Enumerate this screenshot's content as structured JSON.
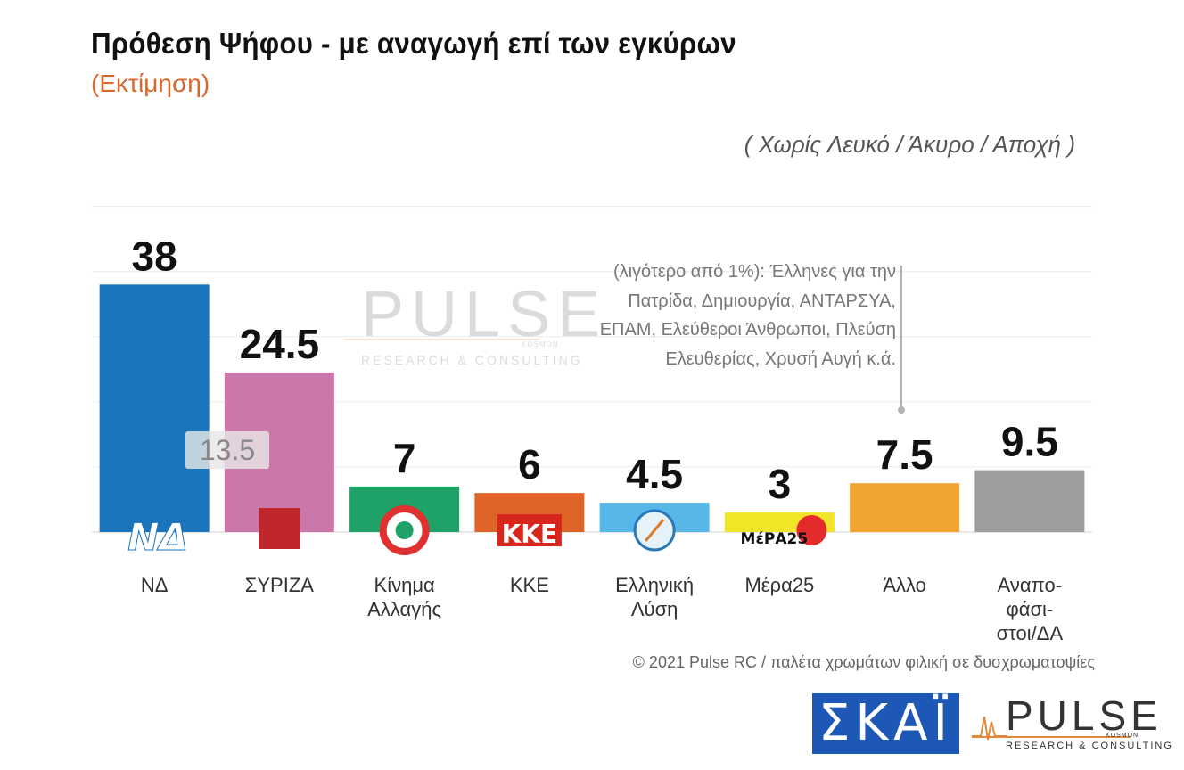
{
  "header": {
    "title": "Πρόθεση Ψήφου - με αναγωγή επί των εγκύρων",
    "subtitle": "(Εκτίμηση)",
    "note": "( Χωρίς Λευκό / Άκυρο / Αποχή )"
  },
  "annotation": {
    "lines": [
      "(λιγότερο από 1%): Έλληνες για την",
      "Πατρίδα, Δημιουργία, ΑΝΤΑΡΣΥΑ,",
      "ΕΠΑΜ, Ελεύθεροι Άνθρωποι, Πλεύση",
      "Ελευθερίας, Χρυσή Αυγή κ.ά."
    ]
  },
  "watermark": {
    "brand": "PULSE",
    "kosmon": "KOSMON",
    "tagline": "RESEARCH & CONSULTING"
  },
  "popup_value": "13.5",
  "chart_data": {
    "type": "bar",
    "categories": [
      "ΝΔ",
      "ΣΥΡΙΖΑ",
      "Κίνημα Αλλαγής",
      "ΚΚΕ",
      "Ελληνική Λύση",
      "Μέρα25",
      "Άλλο",
      "Αναπο-φάσι-στοι/ΔΑ"
    ],
    "category_lines": [
      [
        "ΝΔ"
      ],
      [
        "ΣΥΡΙΖΑ"
      ],
      [
        "Κίνημα",
        "Αλλαγής"
      ],
      [
        "ΚΚΕ"
      ],
      [
        "Ελληνική",
        "Λύση"
      ],
      [
        "Μέρα25"
      ],
      [
        "Άλλο"
      ],
      [
        "Αναπο-",
        "φάσι-",
        "στοι/ΔΑ"
      ]
    ],
    "values": [
      38,
      24.5,
      7,
      6,
      4.5,
      3,
      7.5,
      9.5
    ],
    "value_labels": [
      "38",
      "24.5",
      "7",
      "6",
      "4.5",
      "3",
      "7.5",
      "9.5"
    ],
    "colors": [
      "#1b75bc",
      "#cb77aa",
      "#1fa267",
      "#de6427",
      "#57b7e8",
      "#f2e426",
      "#f0a431",
      "#9d9d9d"
    ],
    "party_logos": [
      "ΝΔ",
      "ΣΥΡΙΖΑ",
      "",
      "ΚΚΕ",
      "",
      "ΜέΡΑ25",
      "",
      ""
    ],
    "ylim": [
      0,
      52
    ],
    "grid": true,
    "title": "Πρόθεση Ψήφου - με αναγωγή επί των εγκύρων"
  },
  "footer": {
    "copyright": "© 2021 Pulse RC  /  παλέτα χρωμάτων φιλική σε δυσχρωματοψίες",
    "skai": "ΣΚΑΪ",
    "pulse": "PULSE",
    "pulse_kosmon": "KOSMON",
    "pulse_tagline": "RESEARCH & CONSULTING"
  }
}
